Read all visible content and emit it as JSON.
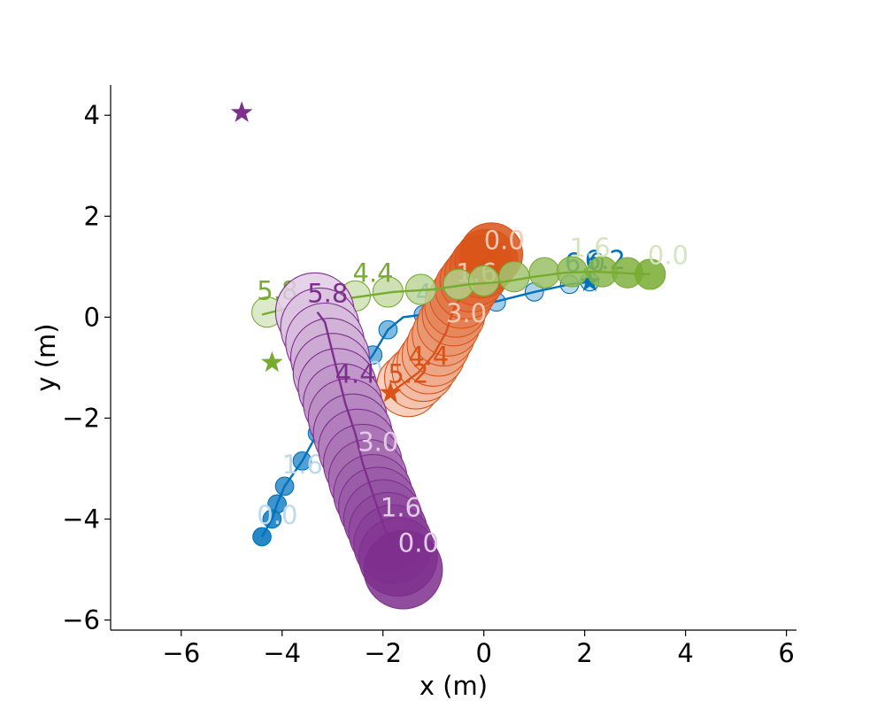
{
  "chart_data": {
    "type": "scatter",
    "title": "",
    "xlabel": "x (m)",
    "ylabel": "y (m)",
    "xlim": [
      -7.4,
      6.2
    ],
    "ylim": [
      -6.2,
      4.6
    ],
    "xticks": [
      -6,
      -4,
      -2,
      0,
      2,
      4,
      6
    ],
    "yticks": [
      -6,
      -4,
      -2,
      0,
      2,
      4
    ],
    "xtick_labels": [
      "−6",
      "−4",
      "−2",
      "0",
      "2",
      "4",
      "6"
    ],
    "ytick_labels": [
      "−6",
      "−4",
      "−2",
      "0",
      "2",
      "4"
    ],
    "grid": false,
    "series": [
      {
        "color": "#0072bd",
        "light_color": "#bcd9ee",
        "radius_data": 0.18,
        "goal": [
          2.1,
          0.7
        ],
        "path": [
          [
            -4.4,
            -4.35
          ],
          [
            -4.2,
            -4.0
          ],
          [
            -4.1,
            -3.7
          ],
          [
            -3.95,
            -3.35
          ],
          [
            -3.6,
            -2.85
          ],
          [
            -3.3,
            -2.3
          ],
          [
            -2.75,
            -1.5
          ],
          [
            -2.2,
            -0.75
          ],
          [
            -1.9,
            -0.25
          ],
          [
            -1.6,
            0.0
          ],
          [
            -1.2,
            0.05
          ],
          [
            -0.5,
            0.15
          ],
          [
            0.2,
            0.3
          ],
          [
            1.0,
            0.5
          ],
          [
            1.7,
            0.65
          ],
          [
            2.1,
            0.7
          ],
          [
            2.2,
            0.75
          ]
        ],
        "discs": [
          [
            -4.4,
            -4.35
          ],
          [
            -4.2,
            -4.0
          ],
          [
            -4.1,
            -3.7
          ],
          [
            -3.95,
            -3.35
          ],
          [
            -3.6,
            -2.85
          ],
          [
            -3.3,
            -2.3
          ],
          [
            -2.75,
            -1.5
          ],
          [
            -2.2,
            -0.75
          ],
          [
            -1.9,
            -0.25
          ],
          [
            -1.2,
            0.05
          ],
          [
            -0.5,
            0.15
          ],
          [
            0.25,
            0.3
          ],
          [
            1.0,
            0.5
          ],
          [
            1.7,
            0.65
          ],
          [
            2.1,
            0.7
          ]
        ],
        "labels": [
          {
            "text": "0.0",
            "x": -4.5,
            "y": -4.1,
            "tone": "light"
          },
          {
            "text": "1.6",
            "x": -4.0,
            "y": -3.1,
            "tone": "light"
          },
          {
            "text": "3.0",
            "x": -2.8,
            "y": -1.25,
            "tone": "light"
          },
          {
            "text": "4.4",
            "x": -1.35,
            "y": 0.3,
            "tone": "dark"
          },
          {
            "text": "6.2",
            "x": 2.0,
            "y": 0.95,
            "tone": "dark"
          },
          {
            "text": "6.0",
            "x": 1.6,
            "y": 0.9,
            "tone": "dark"
          }
        ]
      },
      {
        "color": "#d95319",
        "light_color": "#f5c9b4",
        "radius_data": 0.62,
        "goal": [
          -1.85,
          -1.5
        ],
        "path": [
          [
            0.15,
            1.25
          ],
          [
            -0.1,
            1.0
          ],
          [
            -0.35,
            0.6
          ],
          [
            -0.6,
            0.15
          ],
          [
            -0.75,
            -0.3
          ],
          [
            -1.0,
            -0.75
          ],
          [
            -1.3,
            -1.1
          ],
          [
            -1.85,
            -1.5
          ]
        ],
        "discs": [
          [
            0.15,
            1.25
          ],
          [
            0.05,
            1.12
          ],
          [
            -0.05,
            1.0
          ],
          [
            -0.15,
            0.85
          ],
          [
            -0.25,
            0.72
          ],
          [
            -0.35,
            0.58
          ],
          [
            -0.45,
            0.4
          ],
          [
            -0.55,
            0.22
          ],
          [
            -0.6,
            0.05
          ],
          [
            -0.7,
            -0.15
          ],
          [
            -0.8,
            -0.35
          ],
          [
            -0.9,
            -0.55
          ],
          [
            -1.0,
            -0.75
          ],
          [
            -1.1,
            -0.9
          ],
          [
            -1.2,
            -1.05
          ],
          [
            -1.35,
            -1.2
          ],
          [
            -1.5,
            -1.35
          ]
        ],
        "labels": [
          {
            "text": "0.0",
            "x": 0.0,
            "y": 1.35,
            "tone": "light"
          },
          {
            "text": "1.6",
            "x": -0.55,
            "y": 0.7,
            "tone": "light"
          },
          {
            "text": "3.0",
            "x": -0.75,
            "y": -0.1,
            "tone": "light"
          },
          {
            "text": "4.4",
            "x": -1.5,
            "y": -0.95,
            "tone": "dark"
          },
          {
            "text": "5.2",
            "x": -1.9,
            "y": -1.3,
            "tone": "dark"
          }
        ]
      },
      {
        "color": "#77ac30",
        "light_color": "#d6e5c1",
        "radius_data": 0.3,
        "goal": [
          -4.2,
          -0.9
        ],
        "path": [
          [
            3.3,
            0.85
          ],
          [
            2.8,
            0.87
          ],
          [
            2.2,
            0.9
          ],
          [
            1.6,
            0.88
          ],
          [
            1.0,
            0.8
          ],
          [
            0.4,
            0.7
          ],
          [
            -0.3,
            0.65
          ],
          [
            -1.0,
            0.55
          ],
          [
            -1.8,
            0.5
          ],
          [
            -2.5,
            0.4
          ],
          [
            -3.2,
            0.3
          ],
          [
            -4.0,
            0.15
          ],
          [
            -4.4,
            0.05
          ]
        ],
        "discs": [
          [
            3.3,
            0.85
          ],
          [
            2.85,
            0.88
          ],
          [
            2.35,
            0.9
          ],
          [
            1.75,
            0.9
          ],
          [
            1.2,
            0.88
          ],
          [
            0.6,
            0.8
          ],
          [
            0.0,
            0.72
          ],
          [
            -0.5,
            0.65
          ],
          [
            -1.25,
            0.55
          ],
          [
            -1.9,
            0.5
          ],
          [
            -2.55,
            0.42
          ],
          [
            -4.3,
            0.1
          ]
        ],
        "labels": [
          {
            "text": "0.0",
            "x": 3.25,
            "y": 1.05,
            "tone": "light"
          },
          {
            "text": "1.6",
            "x": 1.7,
            "y": 1.2,
            "tone": "light"
          },
          {
            "text": "4.4",
            "x": -2.6,
            "y": 0.7,
            "tone": "dark"
          },
          {
            "text": "5.8",
            "x": -4.5,
            "y": 0.35,
            "tone": "dark"
          }
        ]
      },
      {
        "color": "#7e2f8e",
        "light_color": "#e1cbe6",
        "radius_data": 0.78,
        "goal": [
          -4.8,
          4.05
        ],
        "path": [
          [
            -1.6,
            -5.0
          ],
          [
            -1.8,
            -4.6
          ],
          [
            -2.0,
            -4.1
          ],
          [
            -2.2,
            -3.5
          ],
          [
            -2.4,
            -2.9
          ],
          [
            -2.55,
            -2.3
          ],
          [
            -2.75,
            -1.7
          ],
          [
            -2.9,
            -1.1
          ],
          [
            -3.05,
            -0.5
          ],
          [
            -3.15,
            -0.1
          ],
          [
            -3.3,
            0.1
          ]
        ],
        "discs": [
          [
            -1.6,
            -5.0
          ],
          [
            -1.7,
            -4.75
          ],
          [
            -1.8,
            -4.5
          ],
          [
            -1.9,
            -4.25
          ],
          [
            -2.0,
            -4.0
          ],
          [
            -2.1,
            -3.75
          ],
          [
            -2.2,
            -3.5
          ],
          [
            -2.3,
            -3.2
          ],
          [
            -2.4,
            -2.9
          ],
          [
            -2.5,
            -2.6
          ],
          [
            -2.6,
            -2.3
          ],
          [
            -2.7,
            -2.0
          ],
          [
            -2.8,
            -1.7
          ],
          [
            -2.9,
            -1.4
          ],
          [
            -3.0,
            -1.1
          ],
          [
            -3.05,
            -0.8
          ],
          [
            -3.15,
            -0.5
          ],
          [
            -3.25,
            -0.2
          ],
          [
            -3.35,
            0.1
          ]
        ],
        "labels": [
          {
            "text": "0.0",
            "x": -1.7,
            "y": -4.65,
            "tone": "light"
          },
          {
            "text": "1.6",
            "x": -2.05,
            "y": -3.95,
            "tone": "light"
          },
          {
            "text": "3.0",
            "x": -2.5,
            "y": -2.65,
            "tone": "light"
          },
          {
            "text": "4.4",
            "x": -2.95,
            "y": -1.3,
            "tone": "dark"
          },
          {
            "text": "5.8",
            "x": -3.5,
            "y": 0.3,
            "tone": "dark"
          }
        ]
      }
    ]
  }
}
